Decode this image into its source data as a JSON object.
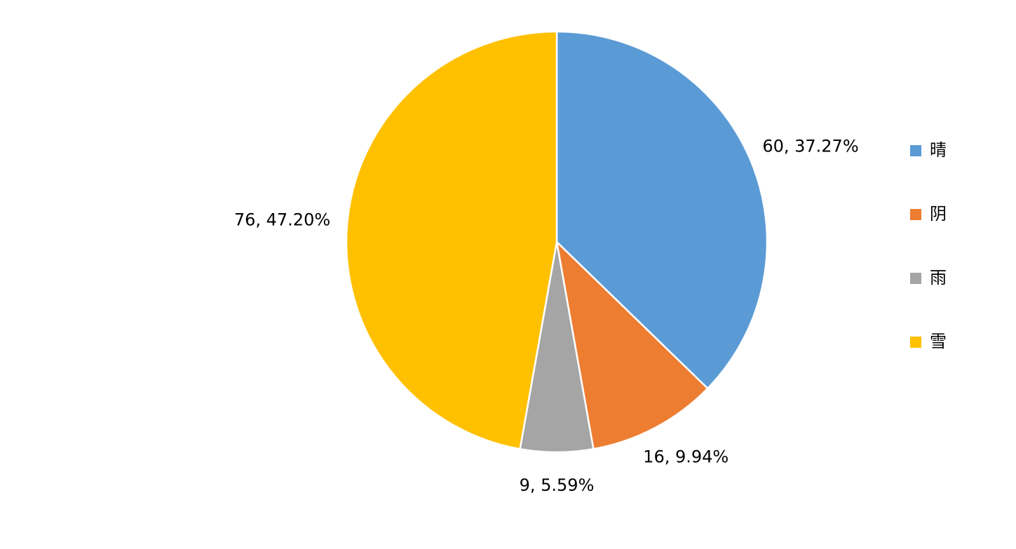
{
  "chart_data": {
    "type": "pie",
    "categories": [
      "晴",
      "阴",
      "雨",
      "雪"
    ],
    "values": [
      60,
      16,
      9,
      76
    ],
    "value_labels": [
      "60, 37.27%",
      "16, 9.94%",
      "9, 5.59%",
      "76, 47.20%"
    ],
    "colors": [
      "#5b9bd5",
      "#ed7d31",
      "#a5a5a5",
      "#ffc000"
    ],
    "legend": "right"
  }
}
